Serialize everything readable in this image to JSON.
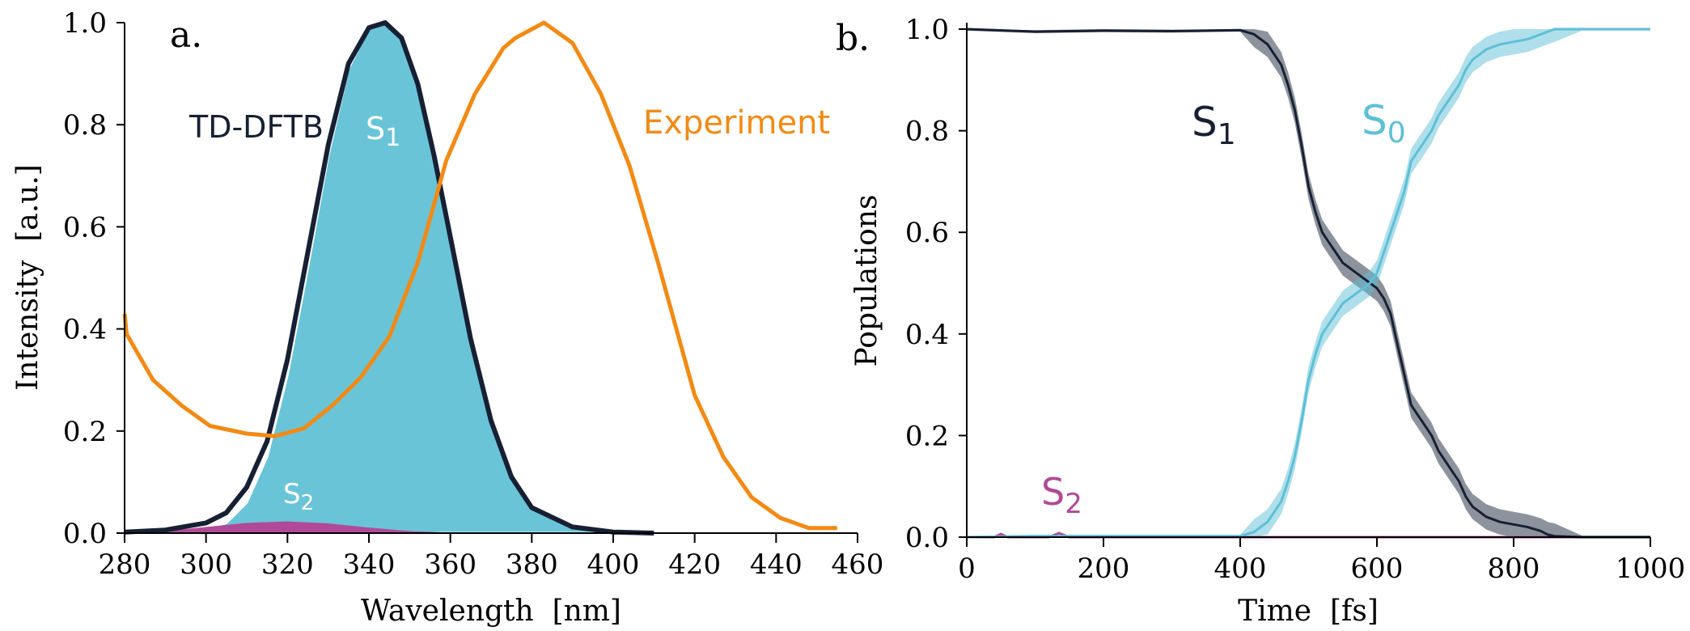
{
  "colors": {
    "s1": "#6ac4d7",
    "s1_dark": "#172033",
    "s0": "#5ebfd6",
    "s2": "#b04a96",
    "experiment": "#f28a14",
    "axis": "#000000"
  },
  "chart_data": [
    {
      "type": "line",
      "panel": "a.",
      "xlabel": "Wavelength  [nm]",
      "ylabel": "Intensity  [a.u.]",
      "xlim": [
        280,
        460
      ],
      "ylim": [
        0,
        1.0
      ],
      "xticks": [
        280,
        300,
        320,
        340,
        360,
        380,
        400,
        420,
        440,
        460
      ],
      "yticks": [
        "0.0",
        "0.2",
        "0.4",
        "0.6",
        "0.8",
        "1.0"
      ],
      "grid": false,
      "series": [
        {
          "name": "TD-DFTB",
          "style": "line",
          "color": "#172033",
          "x": [
            280,
            290,
            300,
            305,
            310,
            315,
            320,
            325,
            330,
            335,
            340,
            344,
            348,
            352,
            356,
            360,
            365,
            370,
            375,
            380,
            390,
            400,
            410
          ],
          "y": [
            0.002,
            0.006,
            0.02,
            0.04,
            0.09,
            0.18,
            0.34,
            0.55,
            0.76,
            0.92,
            0.99,
            1.0,
            0.97,
            0.88,
            0.74,
            0.58,
            0.38,
            0.22,
            0.11,
            0.05,
            0.012,
            0.002,
            0.0
          ]
        },
        {
          "name": "S1",
          "style": "area",
          "color": "#6ac4d7",
          "x": [
            280,
            290,
            300,
            305,
            310,
            315,
            320,
            325,
            330,
            335,
            340,
            344,
            348,
            352,
            356,
            360,
            365,
            370,
            375,
            380,
            390,
            400,
            410
          ],
          "y": [
            0.0,
            0.002,
            0.008,
            0.02,
            0.06,
            0.15,
            0.31,
            0.52,
            0.74,
            0.91,
            0.99,
            1.0,
            0.97,
            0.88,
            0.74,
            0.58,
            0.38,
            0.22,
            0.11,
            0.05,
            0.012,
            0.002,
            0.0
          ]
        },
        {
          "name": "S2",
          "style": "area",
          "color": "#b04a96",
          "x": [
            280,
            290,
            300,
            310,
            320,
            330,
            340,
            350,
            360,
            370
          ],
          "y": [
            0.0,
            0.004,
            0.012,
            0.02,
            0.023,
            0.019,
            0.011,
            0.004,
            0.001,
            0.0
          ]
        },
        {
          "name": "Experiment",
          "style": "line",
          "color": "#f28a14",
          "x": [
            280,
            280.5,
            287,
            294,
            301,
            310,
            317,
            324,
            331,
            338,
            345,
            352,
            359,
            366,
            373,
            376,
            383,
            390,
            397,
            404,
            411,
            420,
            427,
            434,
            441,
            448,
            455
          ],
          "y": [
            0.43,
            0.39,
            0.3,
            0.25,
            0.21,
            0.195,
            0.19,
            0.205,
            0.25,
            0.305,
            0.385,
            0.53,
            0.73,
            0.86,
            0.95,
            0.97,
            1.0,
            0.96,
            0.86,
            0.72,
            0.53,
            0.27,
            0.15,
            0.07,
            0.03,
            0.01,
            0.01
          ]
        }
      ],
      "annotations": {
        "method": "TD-DFTB",
        "experiment": "Experiment",
        "s1": {
          "letter": "S",
          "sub": "1"
        },
        "s2": {
          "letter": "S",
          "sub": "2"
        }
      }
    },
    {
      "type": "line",
      "panel": "b.",
      "xlabel": "Time  [fs]",
      "ylabel": "Populations",
      "xlim": [
        0,
        1000
      ],
      "ylim": [
        0,
        1.0
      ],
      "xticks": [
        0,
        200,
        400,
        600,
        800,
        1000
      ],
      "yticks": [
        "0.0",
        "0.2",
        "0.4",
        "0.6",
        "0.8",
        "1.0"
      ],
      "grid": false,
      "series": [
        {
          "name": "S1",
          "color": "#172033",
          "x": [
            0,
            100,
            200,
            300,
            400,
            420,
            440,
            460,
            470,
            480,
            490,
            500,
            510,
            520,
            530,
            540,
            550,
            560,
            570,
            580,
            590,
            600,
            610,
            620,
            630,
            640,
            650,
            660,
            670,
            680,
            690,
            700,
            710,
            720,
            730,
            740,
            750,
            760,
            780,
            800,
            820,
            840,
            850,
            860,
            900,
            1000
          ],
          "y": [
            1.0,
            0.995,
            0.997,
            0.996,
            0.998,
            0.99,
            0.97,
            0.93,
            0.89,
            0.84,
            0.77,
            0.69,
            0.64,
            0.6,
            0.58,
            0.56,
            0.54,
            0.53,
            0.52,
            0.51,
            0.5,
            0.49,
            0.47,
            0.44,
            0.38,
            0.32,
            0.26,
            0.24,
            0.22,
            0.2,
            0.17,
            0.15,
            0.13,
            0.11,
            0.08,
            0.06,
            0.05,
            0.04,
            0.03,
            0.025,
            0.02,
            0.012,
            0.005,
            0.002,
            0.0,
            0.0
          ]
        },
        {
          "name": "S0",
          "color": "#5ebfd6",
          "x": [
            0,
            100,
            200,
            300,
            400,
            420,
            440,
            460,
            470,
            480,
            490,
            500,
            510,
            520,
            530,
            540,
            550,
            560,
            570,
            580,
            590,
            600,
            610,
            620,
            630,
            640,
            650,
            660,
            670,
            680,
            690,
            700,
            710,
            720,
            730,
            740,
            750,
            760,
            780,
            800,
            820,
            840,
            850,
            860,
            900,
            1000
          ],
          "y": [
            0.0,
            0.002,
            0.002,
            0.002,
            0.002,
            0.01,
            0.03,
            0.07,
            0.11,
            0.16,
            0.23,
            0.31,
            0.36,
            0.4,
            0.42,
            0.44,
            0.46,
            0.47,
            0.48,
            0.49,
            0.5,
            0.52,
            0.56,
            0.6,
            0.64,
            0.68,
            0.74,
            0.76,
            0.78,
            0.8,
            0.83,
            0.85,
            0.87,
            0.89,
            0.92,
            0.94,
            0.95,
            0.96,
            0.97,
            0.975,
            0.98,
            0.99,
            0.995,
            1.0,
            1.0,
            1.0
          ]
        },
        {
          "name": "S2",
          "color": "#b04a96",
          "x": [
            0,
            40,
            50,
            60,
            120,
            135,
            150,
            200,
            1000
          ],
          "y": [
            0.0,
            0.0,
            0.006,
            0.0,
            0.0,
            0.008,
            0.0,
            0.0,
            0.0
          ]
        }
      ],
      "annotations": {
        "s1": {
          "letter": "S",
          "sub": "1"
        },
        "s0": {
          "letter": "S",
          "sub": "0"
        },
        "s2": {
          "letter": "S",
          "sub": "2"
        }
      }
    }
  ]
}
